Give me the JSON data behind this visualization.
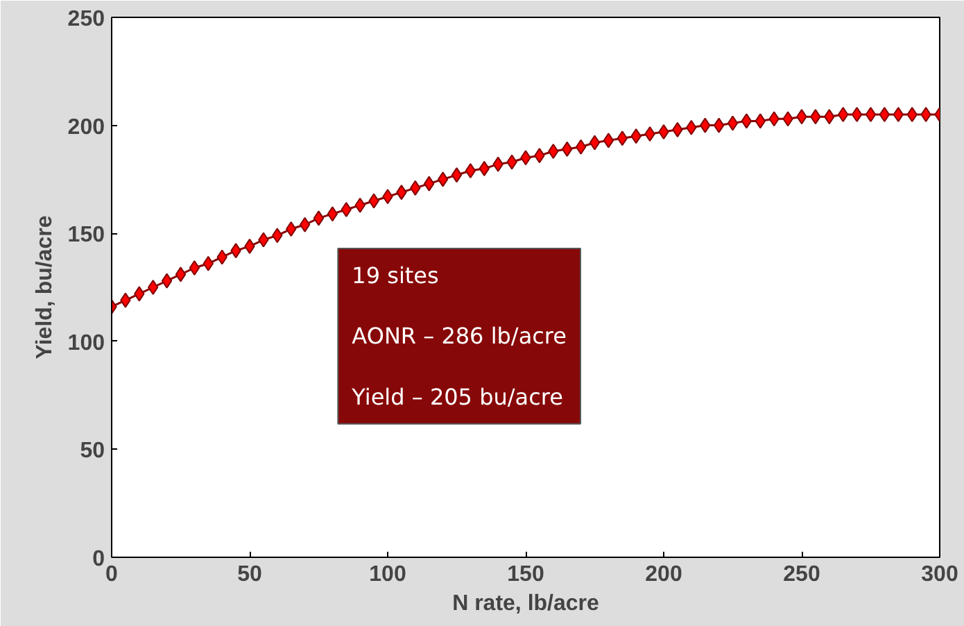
{
  "chart_data": {
    "type": "line",
    "xlabel": "N rate, lb/acre",
    "ylabel": "Yield, bu/acre",
    "x": [
      0,
      5,
      10,
      15,
      20,
      25,
      30,
      35,
      40,
      45,
      50,
      55,
      60,
      65,
      70,
      75,
      80,
      85,
      90,
      95,
      100,
      105,
      110,
      115,
      120,
      125,
      130,
      135,
      140,
      145,
      150,
      155,
      160,
      165,
      170,
      175,
      180,
      185,
      190,
      195,
      200,
      205,
      210,
      215,
      220,
      225,
      230,
      235,
      240,
      245,
      250,
      255,
      260,
      265,
      270,
      275,
      280,
      285,
      290,
      295,
      300
    ],
    "series": [
      {
        "color": "#ff0000",
        "values": [
          116,
          119,
          122,
          125,
          128,
          131,
          134,
          136,
          139,
          142,
          144,
          147,
          149,
          152,
          154,
          157,
          159,
          161,
          163,
          165,
          167,
          169,
          171,
          173,
          175,
          177,
          179,
          180,
          182,
          183,
          185,
          186,
          188,
          189,
          190,
          192,
          193,
          194,
          195,
          196,
          197,
          198,
          199,
          200,
          200,
          201,
          202,
          202,
          203,
          203,
          204,
          204,
          204,
          205,
          205,
          205,
          205,
          205,
          205,
          205,
          205
        ]
      }
    ],
    "xlim": [
      0,
      300
    ],
    "xticks": [
      0,
      50,
      100,
      150,
      200,
      250,
      300
    ],
    "ylim": [
      0,
      250
    ],
    "yticks": [
      0,
      50,
      100,
      150,
      200,
      250
    ],
    "marker": "diamond",
    "grid": false,
    "annotations": [
      "19 sites",
      "AONR – 286 lb/acre",
      "Yield – 205 bu/acre"
    ]
  }
}
